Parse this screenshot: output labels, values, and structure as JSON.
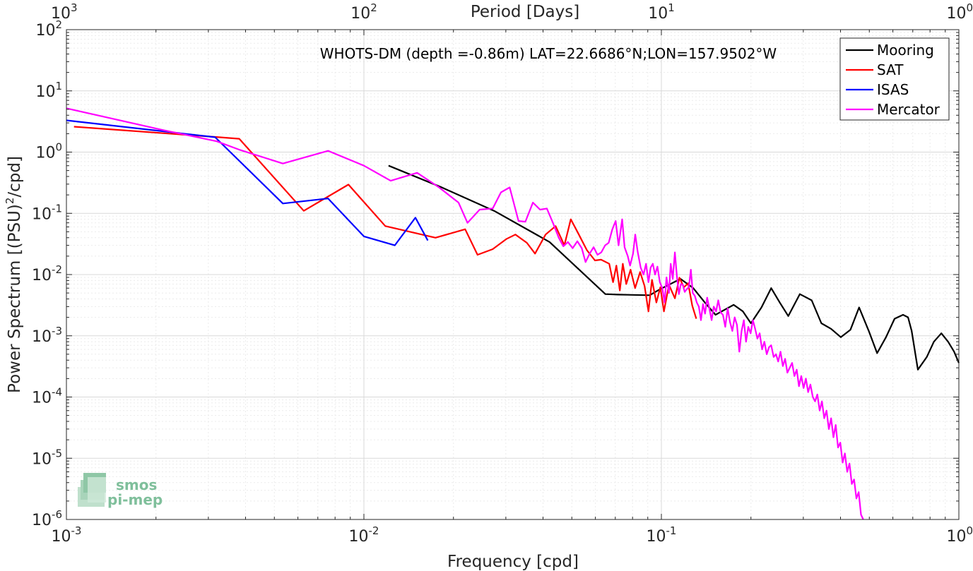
{
  "chart_data": {
    "type": "line",
    "title": "WHOTS-DM (depth =-0.86m) LAT=22.6686°N;LON=157.9502°W",
    "xlabel": "Frequency [cpd]",
    "ylabel": "Power Spectrum [(PSU)",
    "ylabel_sup": "2",
    "ylabel_tail": "/cpd]",
    "x2label": "Period [Days]",
    "xscale": "log",
    "yscale": "log",
    "xlim": [
      0.001,
      1
    ],
    "ylim": [
      1e-06,
      100
    ],
    "grid": true,
    "legend_position": "top-right",
    "x_ticks": [
      {
        "value": 0.001,
        "base": "10",
        "exp": "-3"
      },
      {
        "value": 0.01,
        "base": "10",
        "exp": "-2"
      },
      {
        "value": 0.1,
        "base": "10",
        "exp": "-1"
      },
      {
        "value": 1,
        "base": "10",
        "exp": "0"
      }
    ],
    "y_ticks": [
      {
        "value": 100,
        "base": "10",
        "exp": "2"
      },
      {
        "value": 10,
        "base": "10",
        "exp": "1"
      },
      {
        "value": 1,
        "base": "10",
        "exp": "0"
      },
      {
        "value": 0.1,
        "base": "10",
        "exp": "-1"
      },
      {
        "value": 0.01,
        "base": "10",
        "exp": "-2"
      },
      {
        "value": 0.001,
        "base": "10",
        "exp": "-3"
      },
      {
        "value": 0.0001,
        "base": "10",
        "exp": "-4"
      },
      {
        "value": 1e-05,
        "base": "10",
        "exp": "-5"
      },
      {
        "value": 1e-06,
        "base": "10",
        "exp": "-6"
      }
    ],
    "x2_ticks": [
      {
        "value": 1000,
        "base": "10",
        "exp": "3"
      },
      {
        "value": 100,
        "base": "10",
        "exp": "2"
      },
      {
        "value": 10,
        "base": "10",
        "exp": "1"
      },
      {
        "value": 1,
        "base": "10",
        "exp": "0"
      }
    ],
    "series": [
      {
        "name": "Mooring",
        "color": "#000000",
        "points": [
          [
            0.0121,
            0.6
          ],
          [
            0.0181,
            0.27
          ],
          [
            0.0276,
            0.108
          ],
          [
            0.0421,
            0.034
          ],
          [
            0.0648,
            0.0048
          ],
          [
            0.0714,
            0.0047
          ],
          [
            0.0913,
            0.0046
          ],
          [
            0.0986,
            0.0057
          ],
          [
            0.116,
            0.0085
          ],
          [
            0.128,
            0.006
          ],
          [
            0.14,
            0.0035
          ],
          [
            0.152,
            0.0022
          ],
          [
            0.175,
            0.0032
          ],
          [
            0.188,
            0.0025
          ],
          [
            0.2,
            0.0016
          ],
          [
            0.217,
            0.0029
          ],
          [
            0.234,
            0.006
          ],
          [
            0.25,
            0.0035
          ],
          [
            0.267,
            0.0021
          ],
          [
            0.292,
            0.0048
          ],
          [
            0.32,
            0.0038
          ],
          [
            0.345,
            0.0016
          ],
          [
            0.372,
            0.0013
          ],
          [
            0.401,
            0.00095
          ],
          [
            0.432,
            0.00125
          ],
          [
            0.462,
            0.0029
          ],
          [
            0.498,
            0.0012
          ],
          [
            0.531,
            0.00052
          ],
          [
            0.569,
            0.00095
          ],
          [
            0.608,
            0.0019
          ],
          [
            0.649,
            0.0022
          ],
          [
            0.675,
            0.002
          ],
          [
            0.694,
            0.0012
          ],
          [
            0.728,
            0.00028
          ],
          [
            0.78,
            0.00045
          ],
          [
            0.824,
            0.0008
          ],
          [
            0.873,
            0.0011
          ],
          [
            0.92,
            0.0008
          ],
          [
            0.964,
            0.00055
          ],
          [
            1.0,
            0.00036
          ]
        ]
      },
      {
        "name": "SAT",
        "color": "#ff0000",
        "points": [
          [
            0.00106,
            2.6
          ],
          [
            0.00325,
            1.75
          ],
          [
            0.00381,
            1.65
          ],
          [
            0.00628,
            0.11
          ],
          [
            0.00887,
            0.295
          ],
          [
            0.0118,
            0.062
          ],
          [
            0.0174,
            0.04
          ],
          [
            0.0219,
            0.055
          ],
          [
            0.0241,
            0.021
          ],
          [
            0.0271,
            0.026
          ],
          [
            0.0301,
            0.038
          ],
          [
            0.0323,
            0.045
          ],
          [
            0.0353,
            0.033
          ],
          [
            0.0376,
            0.022
          ],
          [
            0.0408,
            0.045
          ],
          [
            0.0441,
            0.062
          ],
          [
            0.0472,
            0.03
          ],
          [
            0.0496,
            0.08
          ],
          [
            0.0528,
            0.045
          ],
          [
            0.0562,
            0.025
          ],
          [
            0.0598,
            0.017
          ],
          [
            0.0627,
            0.0175
          ],
          [
            0.0668,
            0.015
          ],
          [
            0.0688,
            0.0075
          ],
          [
            0.0706,
            0.014
          ],
          [
            0.0725,
            0.0055
          ],
          [
            0.0742,
            0.015
          ],
          [
            0.0762,
            0.007
          ],
          [
            0.0788,
            0.012
          ],
          [
            0.0816,
            0.006
          ],
          [
            0.0848,
            0.011
          ],
          [
            0.0878,
            0.0065
          ],
          [
            0.0905,
            0.0025
          ],
          [
            0.093,
            0.0082
          ],
          [
            0.0962,
            0.0035
          ],
          [
            0.0992,
            0.0062
          ],
          [
            0.102,
            0.0025
          ],
          [
            0.106,
            0.0068
          ],
          [
            0.111,
            0.0041
          ],
          [
            0.115,
            0.0089
          ],
          [
            0.119,
            0.0062
          ],
          [
            0.123,
            0.0072
          ],
          [
            0.127,
            0.0031
          ],
          [
            0.131,
            0.0019
          ]
        ]
      },
      {
        "name": "ISAS",
        "color": "#0000ff",
        "points": [
          [
            0.001,
            3.3
          ],
          [
            0.00316,
            1.75
          ],
          [
            0.00534,
            0.145
          ],
          [
            0.00758,
            0.175
          ],
          [
            0.01,
            0.042
          ],
          [
            0.0127,
            0.03
          ],
          [
            0.0149,
            0.085
          ],
          [
            0.0164,
            0.036
          ]
        ]
      },
      {
        "name": "Mercator",
        "color": "#ff00ff",
        "points": [
          [
            0.001,
            5.2
          ],
          [
            0.0021,
            2.3
          ],
          [
            0.0032,
            1.5
          ],
          [
            0.0038,
            1.1
          ],
          [
            0.00534,
            0.65
          ],
          [
            0.00758,
            1.05
          ],
          [
            0.01,
            0.6
          ],
          [
            0.0123,
            0.34
          ],
          [
            0.0151,
            0.46
          ],
          [
            0.0178,
            0.27
          ],
          [
            0.0208,
            0.15
          ],
          [
            0.0223,
            0.07
          ],
          [
            0.0245,
            0.115
          ],
          [
            0.0271,
            0.12
          ],
          [
            0.0289,
            0.22
          ],
          [
            0.0309,
            0.265
          ],
          [
            0.0331,
            0.075
          ],
          [
            0.0349,
            0.073
          ],
          [
            0.037,
            0.15
          ],
          [
            0.0391,
            0.115
          ],
          [
            0.0412,
            0.12
          ],
          [
            0.0432,
            0.07
          ],
          [
            0.0452,
            0.04
          ],
          [
            0.0468,
            0.029
          ],
          [
            0.0485,
            0.034
          ],
          [
            0.0503,
            0.027
          ],
          [
            0.0522,
            0.035
          ],
          [
            0.054,
            0.027
          ],
          [
            0.0556,
            0.016
          ],
          [
            0.0574,
            0.022
          ],
          [
            0.0592,
            0.028
          ],
          [
            0.061,
            0.021
          ],
          [
            0.0628,
            0.023
          ],
          [
            0.0647,
            0.03
          ],
          [
            0.0665,
            0.033
          ],
          [
            0.0684,
            0.055
          ],
          [
            0.0702,
            0.075
          ],
          [
            0.0718,
            0.03
          ],
          [
            0.0738,
            0.08
          ],
          [
            0.0752,
            0.028
          ],
          [
            0.0771,
            0.02
          ],
          [
            0.0785,
            0.014
          ],
          [
            0.0803,
            0.022
          ],
          [
            0.0817,
            0.045
          ],
          [
            0.0833,
            0.023
          ],
          [
            0.0852,
            0.013
          ],
          [
            0.0871,
            0.01
          ],
          [
            0.0888,
            0.015
          ],
          [
            0.0905,
            0.0075
          ],
          [
            0.092,
            0.013
          ],
          [
            0.0936,
            0.015
          ],
          [
            0.0952,
            0.01
          ],
          [
            0.097,
            0.0135
          ],
          [
            0.0988,
            0.0075
          ],
          [
            0.1007,
            0.006
          ],
          [
            0.1025,
            0.0035
          ],
          [
            0.104,
            0.009
          ],
          [
            0.106,
            0.005
          ],
          [
            0.1075,
            0.015
          ],
          [
            0.1092,
            0.0085
          ],
          [
            0.111,
            0.023
          ],
          [
            0.1127,
            0.0095
          ],
          [
            0.1145,
            0.0048
          ],
          [
            0.1163,
            0.007
          ],
          [
            0.118,
            0.0068
          ],
          [
            0.1198,
            0.0052
          ],
          [
            0.1218,
            0.0058
          ],
          [
            0.1237,
            0.0062
          ],
          [
            0.1256,
            0.012
          ],
          [
            0.1275,
            0.005
          ],
          [
            0.1295,
            0.0045
          ],
          [
            0.1315,
            0.0035
          ],
          [
            0.1336,
            0.003
          ],
          [
            0.1358,
            0.0018
          ],
          [
            0.138,
            0.0033
          ],
          [
            0.1402,
            0.0023
          ],
          [
            0.1425,
            0.0042
          ],
          [
            0.145,
            0.0028
          ],
          [
            0.1475,
            0.0018
          ],
          [
            0.15,
            0.003
          ],
          [
            0.1527,
            0.0025
          ],
          [
            0.1553,
            0.0038
          ],
          [
            0.1582,
            0.0024
          ],
          [
            0.161,
            0.0022
          ],
          [
            0.164,
            0.0014
          ],
          [
            0.167,
            0.0028
          ],
          [
            0.17,
            0.0017
          ],
          [
            0.1732,
            0.0012
          ],
          [
            0.1763,
            0.002
          ],
          [
            0.1795,
            0.0015
          ],
          [
            0.1828,
            0.00055
          ],
          [
            0.186,
            0.0012
          ],
          [
            0.1893,
            0.0018
          ],
          [
            0.1926,
            0.0008
          ],
          [
            0.196,
            0.0014
          ],
          [
            0.1995,
            0.0011
          ],
          [
            0.203,
            0.0018
          ],
          [
            0.2066,
            0.0013
          ],
          [
            0.2103,
            0.0009
          ],
          [
            0.214,
            0.0011
          ],
          [
            0.218,
            0.0006
          ],
          [
            0.222,
            0.0008
          ],
          [
            0.226,
            0.0005
          ],
          [
            0.23,
            0.00065
          ],
          [
            0.234,
            0.0007
          ],
          [
            0.2385,
            0.00045
          ],
          [
            0.2428,
            0.0005
          ],
          [
            0.247,
            0.00038
          ],
          [
            0.2515,
            0.00055
          ],
          [
            0.256,
            0.00032
          ],
          [
            0.2605,
            0.00042
          ],
          [
            0.2652,
            0.00025
          ],
          [
            0.27,
            0.0003
          ],
          [
            0.275,
            0.00036
          ],
          [
            0.28,
            0.00022
          ],
          [
            0.285,
            0.00028
          ],
          [
            0.29,
            0.00015
          ],
          [
            0.2953,
            0.00022
          ],
          [
            0.3006,
            0.00014
          ],
          [
            0.306,
            0.0002
          ],
          [
            0.3115,
            0.00012
          ],
          [
            0.317,
            0.00016
          ],
          [
            0.3228,
            0.0001
          ],
          [
            0.3286,
            8.5e-05
          ],
          [
            0.3344,
            0.00011
          ],
          [
            0.3404,
            6e-05
          ],
          [
            0.3465,
            8.5e-05
          ],
          [
            0.3527,
            4.5e-05
          ],
          [
            0.359,
            6e-05
          ],
          [
            0.3655,
            3e-05
          ],
          [
            0.372,
            4.5e-05
          ],
          [
            0.3787,
            2.2e-05
          ],
          [
            0.3855,
            3.5e-05
          ],
          [
            0.3924,
            1.5e-05
          ],
          [
            0.3994,
            1.8e-05
          ],
          [
            0.4066,
            8.5e-06
          ],
          [
            0.4139,
            1.2e-05
          ],
          [
            0.4213,
            6e-06
          ],
          [
            0.4289,
            8.2e-06
          ],
          [
            0.4366,
            3.8e-06
          ],
          [
            0.4444,
            4.5e-06
          ],
          [
            0.4524,
            2.2e-06
          ],
          [
            0.4605,
            2.8e-06
          ],
          [
            0.4688,
            1.2e-06
          ],
          [
            0.4772,
            1e-06
          ]
        ]
      }
    ]
  },
  "logo": {
    "line1": "smos",
    "line2": "pi-mep"
  },
  "colors": {
    "axis": "#262626",
    "grid_major": "#d9d9d9",
    "grid_minor": "#ebebeb",
    "logo": "#7fbf9b"
  }
}
